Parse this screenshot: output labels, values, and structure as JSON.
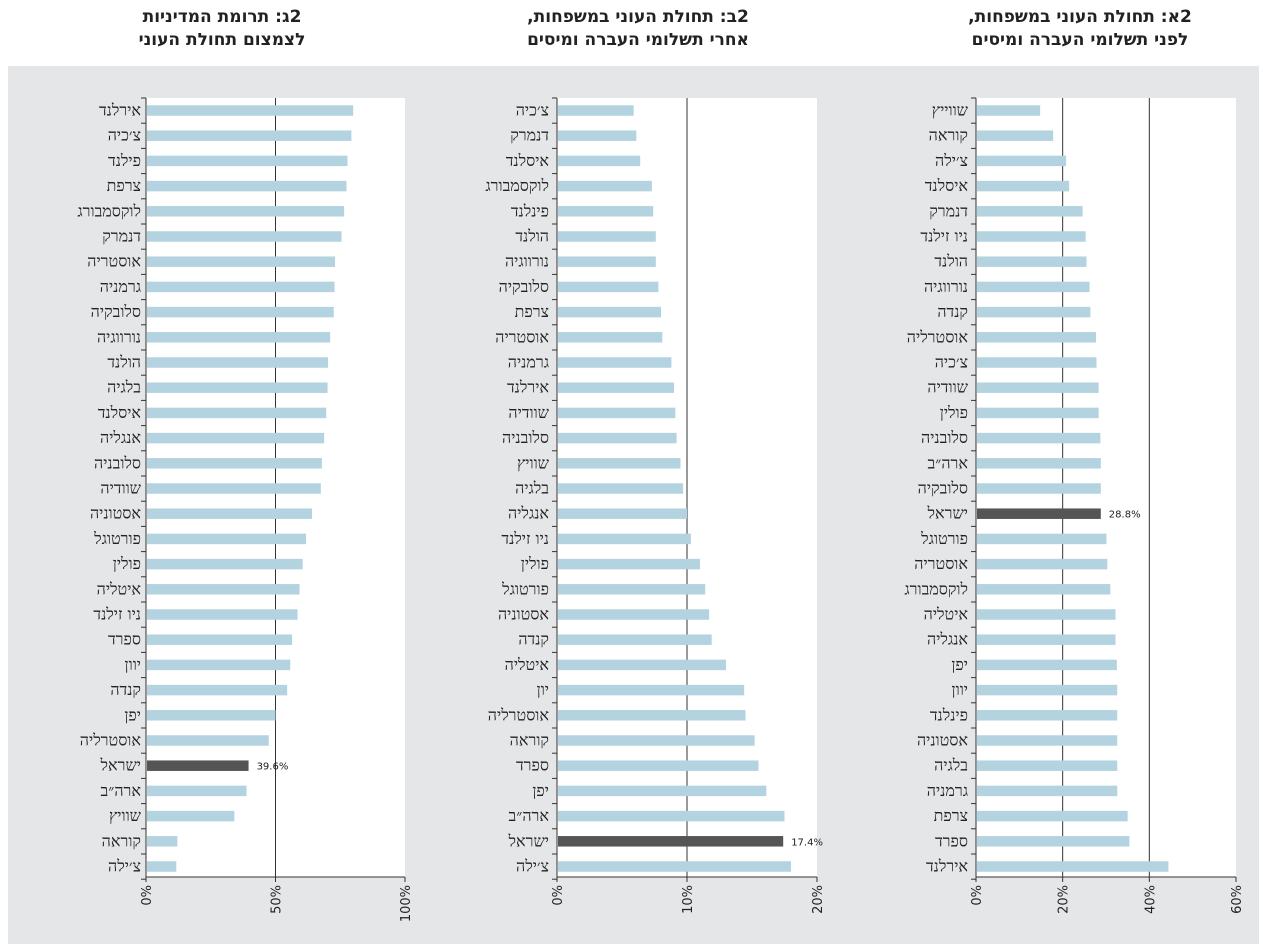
{
  "chart_data": [
    {
      "type": "bar",
      "orientation": "horizontal",
      "title_line1": "2א: תחולת העוני במשפחות,",
      "title_line2": "לפני תשלומי העברה ומיסים",
      "categories": [
        "שווייץ",
        "קוראה",
        "צ׳ילה",
        "איסלנד",
        "דנמרק",
        "ניו זילנד",
        "הולנד",
        "נורווגיה",
        "קנדה",
        "אוסטרליה",
        "צ׳כיה",
        "שוודיה",
        "פולין",
        "סלובניה",
        "ארה״ב",
        "סלובקיה",
        "ישראל",
        "פורטוגל",
        "אוסטריה",
        "לוקסמבורג",
        "איטליה",
        "אנגליה",
        "יפן",
        "יוון",
        "פינלנד",
        "אסטוניה",
        "בלגיה",
        "גרמניה",
        "צרפת",
        "ספרד",
        "אירלנד"
      ],
      "values": [
        14.8,
        17.8,
        20.8,
        21.5,
        24.6,
        25.3,
        25.5,
        26.2,
        26.4,
        27.7,
        27.8,
        28.3,
        28.3,
        28.7,
        28.8,
        28.8,
        28.8,
        30.1,
        30.3,
        31.0,
        32.2,
        32.2,
        32.5,
        32.6,
        32.6,
        32.6,
        32.6,
        32.6,
        35.0,
        35.4,
        44.4
      ],
      "highlight": "ישראל",
      "highlight_label": "28.8%",
      "xlim": [
        0,
        60
      ],
      "xticks": [
        "0%",
        "20%",
        "40%",
        "60%"
      ],
      "tick_values": [
        0,
        20,
        40,
        60
      ]
    },
    {
      "type": "bar",
      "orientation": "horizontal",
      "title_line1": "2ב: תחולת העוני במשפחות,",
      "title_line2": "אחרי תשלומי העברה ומיסים",
      "categories": [
        "צ׳כיה",
        "דנמרק",
        "איסלנד",
        "לוקסמבורג",
        "פינלנד",
        "הולנד",
        "נורווגיה",
        "סלובקיה",
        "צרפת",
        "אוסטריה",
        "גרמניה",
        "אירלנד",
        "שוודיה",
        "סלובניה",
        "שוויץ",
        "בלגיה",
        "אנגליה",
        "ניו זילנד",
        "פולין",
        "פורטוגל",
        "אסטוניה",
        "קנדה",
        "איטליה",
        "יון",
        "אוסטרליה",
        "קוראה",
        "ספרד",
        "יפן",
        "ארה״ב",
        "ישראל",
        "צ׳ילה"
      ],
      "values": [
        5.9,
        6.1,
        6.4,
        7.3,
        7.4,
        7.6,
        7.6,
        7.8,
        8.0,
        8.1,
        8.8,
        9.0,
        9.1,
        9.2,
        9.5,
        9.7,
        10.0,
        10.3,
        11.0,
        11.4,
        11.7,
        11.9,
        13.0,
        14.4,
        14.5,
        15.2,
        15.5,
        16.1,
        17.5,
        17.4,
        18.0
      ],
      "highlight": "ישראל",
      "highlight_label": "17.4%",
      "xlim": [
        0,
        20
      ],
      "xticks": [
        "0%",
        "10%",
        "20%"
      ],
      "tick_values": [
        0,
        10,
        20
      ]
    },
    {
      "type": "bar",
      "orientation": "horizontal",
      "title_line1": "2ג: תרומת המדיניות",
      "title_line2": "לצמצום תחולת העוני",
      "categories": [
        "אירלנד",
        "צ׳כיה",
        "פילנד",
        "צרפת",
        "לוקסמבורג",
        "דנמרק",
        "אוסטריה",
        "גרמניה",
        "סלובקיה",
        "נורווגיה",
        "הולנד",
        "בלגיה",
        "איסלנד",
        "אנגליה",
        "סלובניה",
        "שוודיה",
        "אסטוניה",
        "פורטוגל",
        "פולין",
        "איטליה",
        "ניו זילנד",
        "ספרד",
        "יוון",
        "קנדה",
        "יפן",
        "אוסטרליה",
        "ישראל",
        "ארה״ב",
        "שוויץ",
        "קוראה",
        "צ׳ילה"
      ],
      "values": [
        80.0,
        79.3,
        77.8,
        77.4,
        76.5,
        75.5,
        73.0,
        72.8,
        72.5,
        71.1,
        70.3,
        70.1,
        69.6,
        68.8,
        67.9,
        67.5,
        64.1,
        61.8,
        60.5,
        59.3,
        58.5,
        56.4,
        55.7,
        54.5,
        50.0,
        47.4,
        39.6,
        38.8,
        34.1,
        12.1,
        11.7
      ],
      "highlight": "ישראל",
      "highlight_label": "39.6%",
      "xlim": [
        0,
        100
      ],
      "xticks": [
        "0%",
        "50%",
        "100%"
      ],
      "tick_values": [
        0,
        50,
        100
      ]
    }
  ],
  "colors": {
    "bar": "#b4d3e0",
    "highlight": "#555555",
    "background": "#e5e6e8",
    "plot": "#ffffff"
  }
}
